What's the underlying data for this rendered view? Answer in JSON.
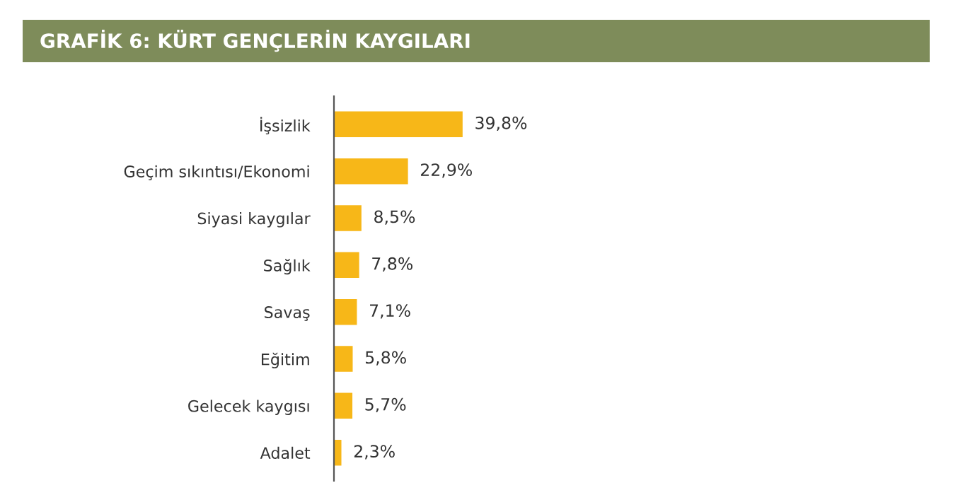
{
  "chart_data": {
    "type": "bar",
    "orientation": "horizontal",
    "title": "GRAFİK 6: KÜRT GENÇLERİN KAYGILARI",
    "categories": [
      "İşsizlik",
      "Geçim sıkıntısı/Ekonomi",
      "Siyasi kaygılar",
      "Sağlık",
      "Savaş",
      "Eğitim",
      "Gelecek kaygısı",
      "Adalet"
    ],
    "values": [
      39.8,
      22.9,
      8.5,
      7.8,
      7.1,
      5.8,
      5.7,
      2.3
    ],
    "value_labels": [
      "39,8%",
      "22,9%",
      "8,5%",
      "7,8%",
      "7,1%",
      "5,8%",
      "5,7%",
      "2,3%"
    ],
    "color": "#f7b718",
    "grid": false,
    "legend": false
  }
}
